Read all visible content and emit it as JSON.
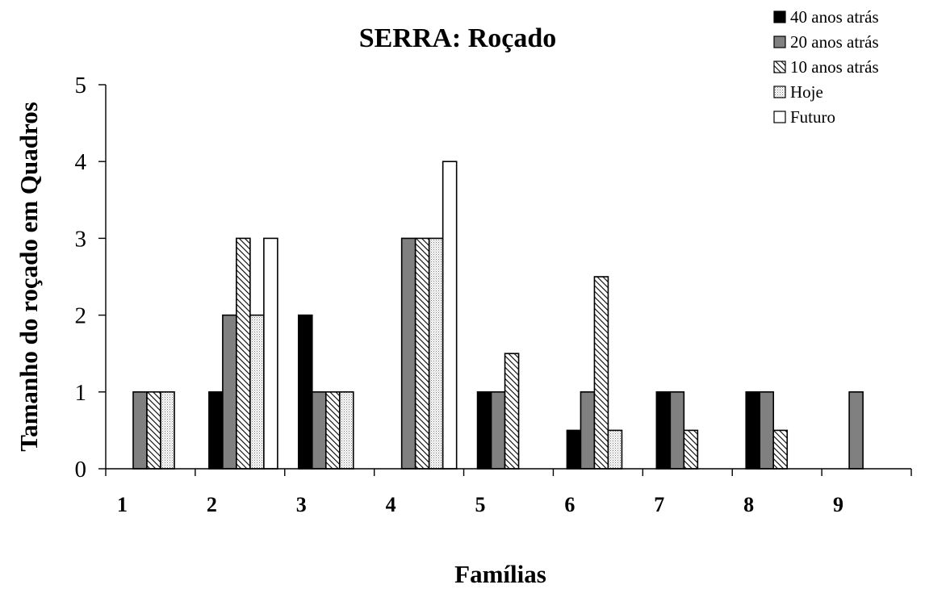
{
  "chart_data": {
    "type": "bar",
    "title": "SERRA: Roçado",
    "xlabel": "Famílias",
    "ylabel": "Tamanho do roçado em Quadros",
    "ylim": [
      0,
      5
    ],
    "yticks": [
      "0",
      "1",
      "2",
      "3",
      "4",
      "5"
    ],
    "categories": [
      "1",
      "2",
      "3",
      "4",
      "5",
      "6",
      "7",
      "8",
      "9"
    ],
    "legend_position": "top-right",
    "grid": false,
    "series": [
      {
        "name": "40 anos atrás",
        "pattern": "solid-black",
        "values": [
          0,
          1,
          2,
          0,
          1,
          0.5,
          1,
          1,
          0
        ]
      },
      {
        "name": "20 anos atrás",
        "pattern": "solid-gray",
        "values": [
          1,
          2,
          1,
          3,
          1,
          1,
          1,
          1,
          1
        ]
      },
      {
        "name": "10 anos atrás",
        "pattern": "diagonal-hatch",
        "values": [
          1,
          3,
          1,
          3,
          1.5,
          2.5,
          0.5,
          0.5,
          0
        ]
      },
      {
        "name": "Hoje",
        "pattern": "light-dots",
        "values": [
          1,
          2,
          1,
          3,
          0,
          0.5,
          0,
          0,
          0
        ]
      },
      {
        "name": "Futuro",
        "pattern": "white",
        "values": [
          0,
          3,
          0,
          4,
          0,
          0,
          0,
          0,
          0
        ]
      }
    ],
    "colors": {
      "black": "#000000",
      "gray": "#808080",
      "white": "#ffffff"
    }
  }
}
